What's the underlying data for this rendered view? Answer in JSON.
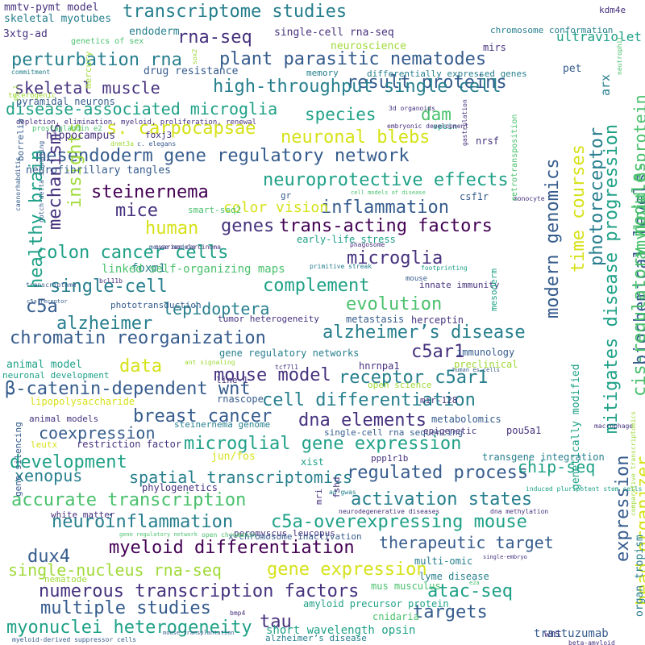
{
  "word_cloud": {
    "palette": {
      "purple": "#46327e",
      "deep_purple": "#440154",
      "blue": "#365c8d",
      "teal": "#277f8e",
      "green_teal": "#1fa187",
      "green": "#4ac16d",
      "lime": "#a0da39",
      "yellow": "#d6e21a"
    },
    "words": [
      {
        "text": "transcriptome studies",
        "color": "teal"
      },
      {
        "text": "rna-seq",
        "color": "purple"
      },
      {
        "text": "result proteins",
        "color": "blue"
      },
      {
        "text": "perturbation rna",
        "color": "teal"
      },
      {
        "text": "plant parasitic nematodes",
        "color": "blue"
      },
      {
        "text": "high-throughput single cell",
        "color": "teal"
      },
      {
        "text": "skeletal muscle",
        "color": "purple"
      },
      {
        "text": "disease-associated microglia",
        "color": "green_teal"
      },
      {
        "text": "species",
        "color": "green_teal"
      },
      {
        "text": "dam",
        "color": "green"
      },
      {
        "text": "s. carpocapsae",
        "color": "yellow"
      },
      {
        "text": "neuronal blebs",
        "color": "yellow"
      },
      {
        "text": "mesendoderm gene regulatory network",
        "color": "blue"
      },
      {
        "text": "neuroprotective effects",
        "color": "green_teal"
      },
      {
        "text": "steinernema",
        "color": "deep_purple"
      },
      {
        "text": "mice",
        "color": "purple"
      },
      {
        "text": "inflammation",
        "color": "blue"
      },
      {
        "text": "human",
        "color": "yellow"
      },
      {
        "text": "genes",
        "color": "purple"
      },
      {
        "text": "trans-acting factors",
        "color": "deep_purple"
      },
      {
        "text": "colon cancer cells",
        "color": "green_teal"
      },
      {
        "text": "microglia",
        "color": "purple"
      },
      {
        "text": "complement",
        "color": "green_teal"
      },
      {
        "text": "single-cell",
        "color": "teal"
      },
      {
        "text": "c5a",
        "color": "blue"
      },
      {
        "text": "evolution",
        "color": "green"
      },
      {
        "text": "lepidoptera",
        "color": "teal"
      },
      {
        "text": "alzheimer",
        "color": "teal"
      },
      {
        "text": "chromatin reorganization",
        "color": "blue"
      },
      {
        "text": "alzheimer’s disease",
        "color": "teal"
      },
      {
        "text": "c5ar1",
        "color": "purple"
      },
      {
        "text": "data",
        "color": "yellow"
      },
      {
        "text": "mouse model",
        "color": "purple"
      },
      {
        "text": "receptor c5ar1",
        "color": "teal"
      },
      {
        "text": "β-catenin-dependent wnt",
        "color": "blue"
      },
      {
        "text": "cell differentiation",
        "color": "teal"
      },
      {
        "text": "breast cancer",
        "color": "blue"
      },
      {
        "text": "dna elements",
        "color": "purple"
      },
      {
        "text": "microglial gene expression",
        "color": "green_teal"
      },
      {
        "text": "development",
        "color": "green_teal"
      },
      {
        "text": "regulated process",
        "color": "blue"
      },
      {
        "text": "spatial transcriptomics",
        "color": "teal"
      },
      {
        "text": "accurate transcription",
        "color": "green"
      },
      {
        "text": "activation states",
        "color": "teal"
      },
      {
        "text": "neuroinflammation",
        "color": "teal"
      },
      {
        "text": "c5a-overexpressing mouse",
        "color": "green_teal"
      },
      {
        "text": "myeloid differentiation",
        "color": "deep_purple"
      },
      {
        "text": "dux4",
        "color": "blue"
      },
      {
        "text": "gene expression",
        "color": "yellow"
      },
      {
        "text": "numerous transcription factors",
        "color": "purple"
      },
      {
        "text": "multiple studies",
        "color": "blue"
      },
      {
        "text": "tau",
        "color": "purple"
      },
      {
        "text": "targets",
        "color": "blue"
      },
      {
        "text": "atac-seq",
        "color": "green_teal"
      },
      {
        "text": "single-nucleus rna-seq",
        "color": "lime"
      },
      {
        "text": "myonuclei heterogeneity",
        "color": "green_teal"
      },
      {
        "text": "therapeutic target",
        "color": "blue"
      },
      {
        "text": "coexpression",
        "color": "blue"
      },
      {
        "text": "xenopus",
        "color": "teal"
      },
      {
        "text": "chip-seq",
        "color": "green_teal"
      },
      {
        "text": "healthy brain",
        "color": "green_teal",
        "vertical": true
      },
      {
        "text": "mechanisms",
        "color": "purple",
        "vertical": true
      },
      {
        "text": "insights",
        "color": "lime",
        "vertical": true
      },
      {
        "text": "modern genomics",
        "color": "blue",
        "vertical": true
      },
      {
        "text": "time courses",
        "color": "yellow",
        "vertical": true
      },
      {
        "text": "mitigates disease progression",
        "color": "green_teal",
        "vertical": true
      },
      {
        "text": "biochemical levels",
        "color": "blue",
        "vertical": true
      },
      {
        "text": "photoreceptor",
        "color": "teal",
        "vertical": true
      },
      {
        "text": "head organizer",
        "color": "yellow",
        "vertical": true
      },
      {
        "text": "expression",
        "color": "blue",
        "vertical": true
      },
      {
        "text": "cis-regulatory modules",
        "color": "green",
        "vertical": true
      },
      {
        "text": "amyloid β-protein",
        "color": "green",
        "vertical": true
      },
      {
        "text": "genetically modified",
        "color": "green_teal",
        "vertical": true
      },
      {
        "text": "organ tropism",
        "color": "teal",
        "vertical": true
      },
      {
        "text": "mmtv-pymt model",
        "color": "purple"
      },
      {
        "text": "skeletal myotubes",
        "color": "teal"
      },
      {
        "text": "3xtg-ad",
        "color": "purple"
      },
      {
        "text": "endoderm",
        "color": "teal"
      },
      {
        "text": "single-cell rna-seq",
        "color": "purple"
      },
      {
        "text": "ultraviolet",
        "color": "green_teal"
      },
      {
        "text": "chromosome conformation",
        "color": "teal"
      },
      {
        "text": "mirs",
        "color": "purple"
      },
      {
        "text": "neuroscience",
        "color": "lime"
      },
      {
        "text": "genetics of sex",
        "color": "green"
      },
      {
        "text": "drug resistance",
        "color": "blue"
      },
      {
        "text": "memory",
        "color": "teal"
      },
      {
        "text": "differentially expressed genes",
        "color": "teal"
      },
      {
        "text": "pet",
        "color": "blue"
      },
      {
        "text": "kdm4e",
        "color": "purple"
      },
      {
        "text": "pyramidal neurons",
        "color": "blue"
      },
      {
        "text": "hippocampus",
        "color": "purple"
      },
      {
        "text": "foxj3",
        "color": "purple"
      },
      {
        "text": "nrsf",
        "color": "purple"
      },
      {
        "text": "neurofibrillary tangles",
        "color": "blue"
      },
      {
        "text": "color vision",
        "color": "yellow"
      },
      {
        "text": "csf1r",
        "color": "blue"
      },
      {
        "text": "smart-seq2",
        "color": "green"
      },
      {
        "text": "early-life stress",
        "color": "green_teal"
      },
      {
        "text": "foxm1",
        "color": "teal"
      },
      {
        "text": "linked self-organizing maps",
        "color": "green"
      },
      {
        "text": "innate immunity",
        "color": "purple"
      },
      {
        "text": "phototransduction",
        "color": "blue"
      },
      {
        "text": "tumor heterogeneity",
        "color": "purple"
      },
      {
        "text": "metastasis",
        "color": "blue"
      },
      {
        "text": "herceptin",
        "color": "purple"
      },
      {
        "text": "gene regulatory networks",
        "color": "teal"
      },
      {
        "text": "immunology",
        "color": "blue"
      },
      {
        "text": "preclinical",
        "color": "lime"
      },
      {
        "text": "animal model",
        "color": "green_teal"
      },
      {
        "text": "line-1",
        "color": "purple"
      },
      {
        "text": "hnrnpa1",
        "color": "purple"
      },
      {
        "text": "neuronal development",
        "color": "green_teal"
      },
      {
        "text": "lipopolysaccharide",
        "color": "yellow"
      },
      {
        "text": "rnascope",
        "color": "blue"
      },
      {
        "text": "mir-128",
        "color": "purple"
      },
      {
        "text": "open science",
        "color": "lime"
      },
      {
        "text": "animal models",
        "color": "purple"
      },
      {
        "text": "steinernema genome",
        "color": "teal"
      },
      {
        "text": "metabolomics",
        "color": "blue"
      },
      {
        "text": "pou5a1",
        "color": "purple"
      },
      {
        "text": "leutx",
        "color": "yellow"
      },
      {
        "text": "restriction factor",
        "color": "purple"
      },
      {
        "text": "single-cell rna sequencing",
        "color": "blue"
      },
      {
        "text": "epigenetic",
        "color": "purple"
      },
      {
        "text": "jun/fos",
        "color": "yellow"
      },
      {
        "text": "ppp1r1b",
        "color": "purple"
      },
      {
        "text": "xist",
        "color": "green_teal"
      },
      {
        "text": "transgene integration",
        "color": "teal"
      },
      {
        "text": "phylogenetics",
        "color": "purple"
      },
      {
        "text": "white matter",
        "color": "purple"
      },
      {
        "text": "peromyscus leucopus",
        "color": "purple"
      },
      {
        "text": "x-chromosome inactivation",
        "color": "blue"
      },
      {
        "text": "multi-omic",
        "color": "teal"
      },
      {
        "text": "lyme disease",
        "color": "teal"
      },
      {
        "text": "nematode",
        "color": "lime"
      },
      {
        "text": "mus musculus",
        "color": "green"
      },
      {
        "text": "amyloid precursor protein",
        "color": "green_teal"
      },
      {
        "text": "cnidaria",
        "color": "green"
      },
      {
        "text": "short wavelength opsin",
        "color": "green_teal"
      },
      {
        "text": "wnt",
        "color": "purple"
      },
      {
        "text": "trastuzumab",
        "color": "blue"
      },
      {
        "text": "alzheimer’s disease",
        "color": "teal"
      },
      {
        "text": "commitment",
        "color": "teal"
      },
      {
        "text": "tolerogenic",
        "color": "lime"
      },
      {
        "text": "depletion, elimination, myeloid, proliferation, renewal",
        "color": "purple"
      },
      {
        "text": "prostaglandin e2",
        "color": "green"
      },
      {
        "text": "dnmt3a",
        "color": "lime"
      },
      {
        "text": "c. elegans",
        "color": "blue"
      },
      {
        "text": "3d organoids",
        "color": "purple"
      },
      {
        "text": "opsin",
        "color": "green_teal"
      },
      {
        "text": "embryonic development",
        "color": "purple"
      },
      {
        "text": "cell models of disease",
        "color": "green"
      },
      {
        "text": "monocyte",
        "color": "purple"
      },
      {
        "text": "gr",
        "color": "blue"
      },
      {
        "text": "mouse models",
        "color": "blue"
      },
      {
        "text": "ovarian carcinoma",
        "color": "purple"
      },
      {
        "text": "phagosome",
        "color": "purple"
      },
      {
        "text": "primitive streak",
        "color": "teal"
      },
      {
        "text": "bcl11b",
        "color": "purple"
      },
      {
        "text": "footprinting",
        "color": "green_teal"
      },
      {
        "text": "transcriptome",
        "color": "blue"
      },
      {
        "text": "mouse",
        "color": "blue"
      },
      {
        "text": "c5a receptor",
        "color": "blue"
      },
      {
        "text": "ant signaling",
        "color": "lime"
      },
      {
        "text": "tcf7l1",
        "color": "purple"
      },
      {
        "text": "human es cells",
        "color": "blue"
      },
      {
        "text": "macrophage",
        "color": "purple"
      },
      {
        "text": "induced pluripotent stem cells",
        "color": "green_teal"
      },
      {
        "text": "ad-gwas",
        "color": "teal"
      },
      {
        "text": "neurodegenerative diseases",
        "color": "purple"
      },
      {
        "text": "dna methylation",
        "color": "purple"
      },
      {
        "text": "gene regulatory network",
        "color": "green"
      },
      {
        "text": "open chromatin",
        "color": "green"
      },
      {
        "text": "single-embryo",
        "color": "purple"
      },
      {
        "text": "e2a",
        "color": "green"
      },
      {
        "text": "bmp4",
        "color": "purple"
      },
      {
        "text": "mouse transplantation",
        "color": "blue"
      },
      {
        "text": "myeloid-derived suppressor cells",
        "color": "blue"
      },
      {
        "text": "beta-amyloid",
        "color": "purple"
      },
      {
        "text": "mercury",
        "color": "lime",
        "vertical": true
      },
      {
        "text": "sox2",
        "color": "lime",
        "vertical": true
      },
      {
        "text": "arx",
        "color": "teal",
        "vertical": true
      },
      {
        "text": "neutrophil",
        "color": "green",
        "vertical": true
      },
      {
        "text": "pu.1",
        "color": "lime",
        "vertical": true
      },
      {
        "text": "borrelia",
        "color": "blue",
        "vertical": true
      },
      {
        "text": "gastrulation",
        "color": "purple",
        "vertical": true
      },
      {
        "text": "caenorhabditis",
        "color": "blue",
        "vertical": true
      },
      {
        "text": "notch-delta signaling",
        "color": "blue",
        "vertical": true
      },
      {
        "text": "retrotransposition",
        "color": "green",
        "vertical": true
      },
      {
        "text": "mesoderm",
        "color": "green_teal",
        "vertical": true
      },
      {
        "text": "gene silencing",
        "color": "blue",
        "vertical": true
      },
      {
        "text": "mri",
        "color": "purple",
        "vertical": true
      },
      {
        "text": "fshd",
        "color": "purple",
        "vertical": true
      },
      {
        "text": "comparative transcriptomics",
        "color": "lime",
        "vertical": true
      }
    ]
  }
}
